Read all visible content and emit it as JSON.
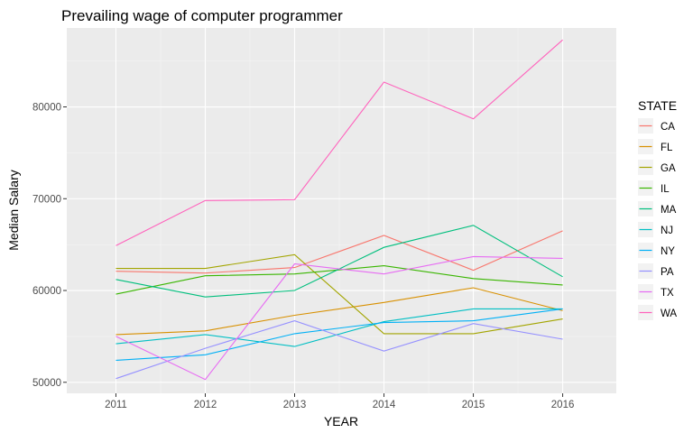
{
  "chart_data": {
    "type": "line",
    "title": "Prevailing wage of computer programmer",
    "xlabel": "YEAR",
    "ylabel": "Median Salary",
    "x": [
      2011,
      2012,
      2013,
      2014,
      2015,
      2016
    ],
    "xlim": [
      2010.45,
      2016.6
    ],
    "ylim": [
      48800,
      88600
    ],
    "yticks": [
      50000,
      60000,
      70000,
      80000
    ],
    "ytick_labels": [
      "50000",
      "60000",
      "70000",
      "80000"
    ],
    "xtick_labels": [
      "2011",
      "2012",
      "2013",
      "2014",
      "2015",
      "2016"
    ],
    "grid": true,
    "legend_title": "STATE",
    "legend_position": "right",
    "series": [
      {
        "name": "CA",
        "color": "#F8766D",
        "values": [
          62100,
          61900,
          62500,
          66000,
          62200,
          66500
        ]
      },
      {
        "name": "FL",
        "color": "#D89000",
        "values": [
          55200,
          55600,
          57300,
          58700,
          60300,
          57800
        ]
      },
      {
        "name": "GA",
        "color": "#A3A500",
        "values": [
          62400,
          62400,
          63900,
          55300,
          55300,
          56900
        ]
      },
      {
        "name": "IL",
        "color": "#39B600",
        "values": [
          59600,
          61600,
          61800,
          62700,
          61300,
          60600
        ]
      },
      {
        "name": "MA",
        "color": "#00BF7D",
        "values": [
          61200,
          59300,
          60000,
          64700,
          67100,
          61500
        ]
      },
      {
        "name": "NJ",
        "color": "#00BFC4",
        "values": [
          54200,
          55200,
          53900,
          56600,
          58000,
          58000
        ]
      },
      {
        "name": "NY",
        "color": "#00B0F6",
        "values": [
          52400,
          53000,
          55300,
          56500,
          56700,
          58000
        ]
      },
      {
        "name": "PA",
        "color": "#9590FF",
        "values": [
          50400,
          53700,
          56700,
          53400,
          56400,
          54700
        ]
      },
      {
        "name": "TX",
        "color": "#E76BF3",
        "values": [
          55000,
          50300,
          62900,
          61800,
          63700,
          63500
        ]
      },
      {
        "name": "WA",
        "color": "#FF62BC",
        "values": [
          64900,
          69800,
          69900,
          82700,
          78700,
          87300
        ]
      }
    ]
  }
}
